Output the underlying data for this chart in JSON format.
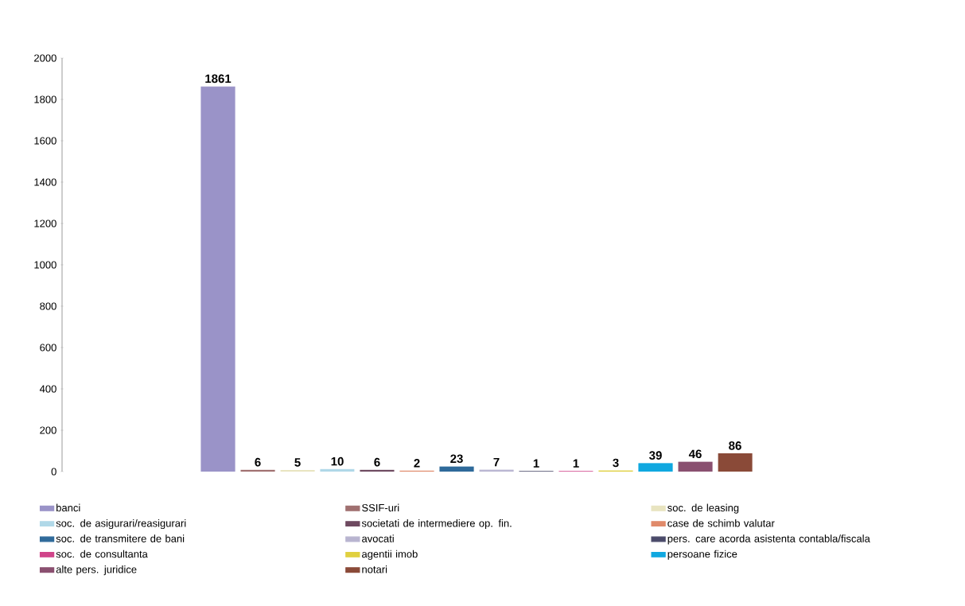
{
  "chart_data": {
    "type": "bar",
    "categories": [
      null
    ],
    "series": [
      {
        "name": "banci",
        "color": "#9a93c8",
        "values": [
          1861
        ]
      },
      {
        "name": "SSIF-uri",
        "color": "#a07070",
        "values": [
          6
        ]
      },
      {
        "name": "soc. de leasing",
        "color": "#e8e4c0",
        "values": [
          5
        ]
      },
      {
        "name": "soc. de asigurari/reasigurari",
        "color": "#b0d8e8",
        "values": [
          10
        ]
      },
      {
        "name": "societati de intermediere op. fin.",
        "color": "#6e4a60",
        "values": [
          6
        ]
      },
      {
        "name": "case de schimb valutar",
        "color": "#e08a6a",
        "values": [
          2
        ]
      },
      {
        "name": "soc. de transmitere de bani",
        "color": "#2f6a9a",
        "values": [
          23
        ]
      },
      {
        "name": "avocati",
        "color": "#b8b4d0",
        "values": [
          7
        ]
      },
      {
        "name": "pers. care acorda asistenta contabla/fiscala",
        "color": "#4a4a6a",
        "values": [
          1
        ]
      },
      {
        "name": "soc. de consultanta",
        "color": "#d0458a",
        "values": [
          1
        ]
      },
      {
        "name": "agentii imob",
        "color": "#e0d040",
        "values": [
          3
        ]
      },
      {
        "name": "persoane fizice",
        "color": "#10a8e0",
        "values": [
          39
        ]
      },
      {
        "name": "alte pers. juridice",
        "color": "#8a5070",
        "values": [
          46
        ]
      },
      {
        "name": "notari",
        "color": "#8a4a38",
        "values": [
          86
        ]
      }
    ],
    "ylim": [
      0,
      2000
    ],
    "yticks": [
      0,
      200,
      400,
      600,
      800,
      1000,
      1200,
      1400,
      1600,
      1800,
      2000
    ],
    "data_labels": true,
    "legend": "bottom",
    "tick_labels": "y"
  }
}
